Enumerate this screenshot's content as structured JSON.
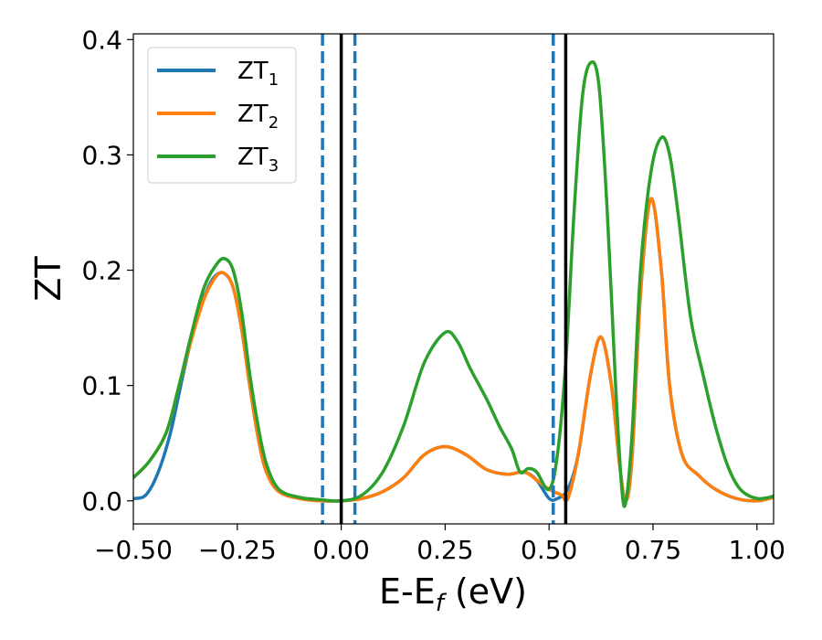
{
  "chart_data": {
    "type": "line",
    "xlabel": "E-E",
    "xlabel_sub": "f",
    "xlabel_unit": " (eV)",
    "ylabel": "ZT",
    "xlim": [
      -0.5,
      1.04
    ],
    "ylim": [
      -0.02,
      0.405
    ],
    "xticks": [
      -0.5,
      -0.25,
      0.0,
      0.25,
      0.5,
      0.75,
      1.0
    ],
    "xtick_labels": [
      "−0.50",
      "−0.25",
      "0.00",
      "0.25",
      "0.50",
      "0.75",
      "1.00"
    ],
    "yticks": [
      0.0,
      0.1,
      0.2,
      0.3,
      0.4
    ],
    "ytick_labels": [
      "0.0",
      "0.1",
      "0.2",
      "0.3",
      "0.4"
    ],
    "grid": false,
    "legend_position": "top-left",
    "vlines": [
      {
        "x": -0.045,
        "style": "dashed",
        "color": "#1f77b4"
      },
      {
        "x": 0.0,
        "style": "solid",
        "color": "#000000"
      },
      {
        "x": 0.033,
        "style": "dashed",
        "color": "#1f77b4"
      },
      {
        "x": 0.51,
        "style": "dashed",
        "color": "#1f77b4"
      },
      {
        "x": 0.54,
        "style": "solid",
        "color": "#000000"
      }
    ],
    "series": [
      {
        "name": "ZT",
        "name_sub": "1",
        "color": "#1f77b4",
        "points": [
          [
            -0.5,
            0.002
          ],
          [
            -0.47,
            0.005
          ],
          [
            -0.44,
            0.025
          ],
          [
            -0.41,
            0.06
          ],
          [
            -0.38,
            0.11
          ],
          [
            -0.35,
            0.155
          ],
          [
            -0.32,
            0.185
          ],
          [
            -0.3,
            0.196
          ],
          [
            -0.28,
            0.197
          ],
          [
            -0.26,
            0.185
          ],
          [
            -0.24,
            0.15
          ],
          [
            -0.22,
            0.1
          ],
          [
            -0.2,
            0.055
          ],
          [
            -0.18,
            0.025
          ],
          [
            -0.15,
            0.008
          ],
          [
            -0.1,
            0.002
          ],
          [
            -0.05,
            0.0
          ],
          [
            0.0,
            0.0
          ],
          [
            0.05,
            0.002
          ],
          [
            0.1,
            0.008
          ],
          [
            0.15,
            0.02
          ],
          [
            0.2,
            0.04
          ],
          [
            0.25,
            0.047
          ],
          [
            0.3,
            0.04
          ],
          [
            0.35,
            0.027
          ],
          [
            0.4,
            0.023
          ],
          [
            0.44,
            0.025
          ],
          [
            0.47,
            0.018
          ],
          [
            0.5,
            0.002
          ],
          [
            0.52,
            0.002
          ],
          [
            0.545,
            0.01
          ],
          [
            0.57,
            0.04
          ],
          [
            0.6,
            0.11
          ],
          [
            0.625,
            0.142
          ],
          [
            0.65,
            0.1
          ],
          [
            0.67,
            0.03
          ],
          [
            0.685,
            0.0
          ],
          [
            0.7,
            0.04
          ],
          [
            0.72,
            0.18
          ],
          [
            0.745,
            0.262
          ],
          [
            0.77,
            0.2
          ],
          [
            0.79,
            0.1
          ],
          [
            0.82,
            0.04
          ],
          [
            0.86,
            0.022
          ],
          [
            0.9,
            0.01
          ],
          [
            0.95,
            0.002
          ],
          [
            1.0,
            0.0
          ],
          [
            1.04,
            0.003
          ]
        ]
      },
      {
        "name": "ZT",
        "name_sub": "2",
        "color": "#ff7f0e",
        "points": [
          [
            -0.5,
            0.02
          ],
          [
            -0.46,
            0.035
          ],
          [
            -0.42,
            0.06
          ],
          [
            -0.39,
            0.1
          ],
          [
            -0.36,
            0.14
          ],
          [
            -0.33,
            0.175
          ],
          [
            -0.3,
            0.195
          ],
          [
            -0.28,
            0.197
          ],
          [
            -0.26,
            0.185
          ],
          [
            -0.24,
            0.15
          ],
          [
            -0.22,
            0.1
          ],
          [
            -0.2,
            0.055
          ],
          [
            -0.18,
            0.025
          ],
          [
            -0.15,
            0.008
          ],
          [
            -0.1,
            0.002
          ],
          [
            -0.05,
            0.0
          ],
          [
            0.0,
            0.0
          ],
          [
            0.05,
            0.002
          ],
          [
            0.1,
            0.008
          ],
          [
            0.15,
            0.02
          ],
          [
            0.2,
            0.04
          ],
          [
            0.25,
            0.047
          ],
          [
            0.3,
            0.04
          ],
          [
            0.35,
            0.027
          ],
          [
            0.4,
            0.023
          ],
          [
            0.44,
            0.025
          ],
          [
            0.47,
            0.018
          ],
          [
            0.5,
            0.01
          ],
          [
            0.53,
            0.005
          ],
          [
            0.545,
            0.002
          ],
          [
            0.57,
            0.04
          ],
          [
            0.6,
            0.11
          ],
          [
            0.625,
            0.142
          ],
          [
            0.65,
            0.1
          ],
          [
            0.67,
            0.03
          ],
          [
            0.685,
            0.0
          ],
          [
            0.7,
            0.04
          ],
          [
            0.72,
            0.18
          ],
          [
            0.745,
            0.262
          ],
          [
            0.77,
            0.2
          ],
          [
            0.79,
            0.1
          ],
          [
            0.82,
            0.04
          ],
          [
            0.86,
            0.022
          ],
          [
            0.9,
            0.01
          ],
          [
            0.95,
            0.002
          ],
          [
            1.0,
            0.0
          ],
          [
            1.04,
            0.003
          ]
        ]
      },
      {
        "name": "ZT",
        "name_sub": "3",
        "color": "#2ca02c",
        "points": [
          [
            -0.5,
            0.02
          ],
          [
            -0.46,
            0.035
          ],
          [
            -0.42,
            0.06
          ],
          [
            -0.39,
            0.1
          ],
          [
            -0.36,
            0.145
          ],
          [
            -0.33,
            0.185
          ],
          [
            -0.3,
            0.205
          ],
          [
            -0.28,
            0.21
          ],
          [
            -0.26,
            0.2
          ],
          [
            -0.24,
            0.165
          ],
          [
            -0.22,
            0.11
          ],
          [
            -0.2,
            0.065
          ],
          [
            -0.18,
            0.032
          ],
          [
            -0.15,
            0.01
          ],
          [
            -0.1,
            0.003
          ],
          [
            -0.05,
            0.001
          ],
          [
            0.0,
            0.0
          ],
          [
            0.05,
            0.005
          ],
          [
            0.1,
            0.025
          ],
          [
            0.15,
            0.065
          ],
          [
            0.2,
            0.12
          ],
          [
            0.25,
            0.146
          ],
          [
            0.28,
            0.138
          ],
          [
            0.31,
            0.115
          ],
          [
            0.35,
            0.088
          ],
          [
            0.38,
            0.065
          ],
          [
            0.41,
            0.045
          ],
          [
            0.43,
            0.025
          ],
          [
            0.45,
            0.028
          ],
          [
            0.47,
            0.025
          ],
          [
            0.5,
            0.01
          ],
          [
            0.52,
            0.04
          ],
          [
            0.54,
            0.12
          ],
          [
            0.56,
            0.25
          ],
          [
            0.58,
            0.35
          ],
          [
            0.6,
            0.38
          ],
          [
            0.62,
            0.36
          ],
          [
            0.64,
            0.25
          ],
          [
            0.66,
            0.1
          ],
          [
            0.675,
            0.01
          ],
          [
            0.685,
            0.0
          ],
          [
            0.7,
            0.06
          ],
          [
            0.72,
            0.2
          ],
          [
            0.745,
            0.285
          ],
          [
            0.77,
            0.315
          ],
          [
            0.79,
            0.3
          ],
          [
            0.81,
            0.25
          ],
          [
            0.84,
            0.16
          ],
          [
            0.87,
            0.11
          ],
          [
            0.9,
            0.065
          ],
          [
            0.93,
            0.03
          ],
          [
            0.96,
            0.01
          ],
          [
            1.0,
            0.002
          ],
          [
            1.04,
            0.004
          ]
        ]
      }
    ]
  }
}
